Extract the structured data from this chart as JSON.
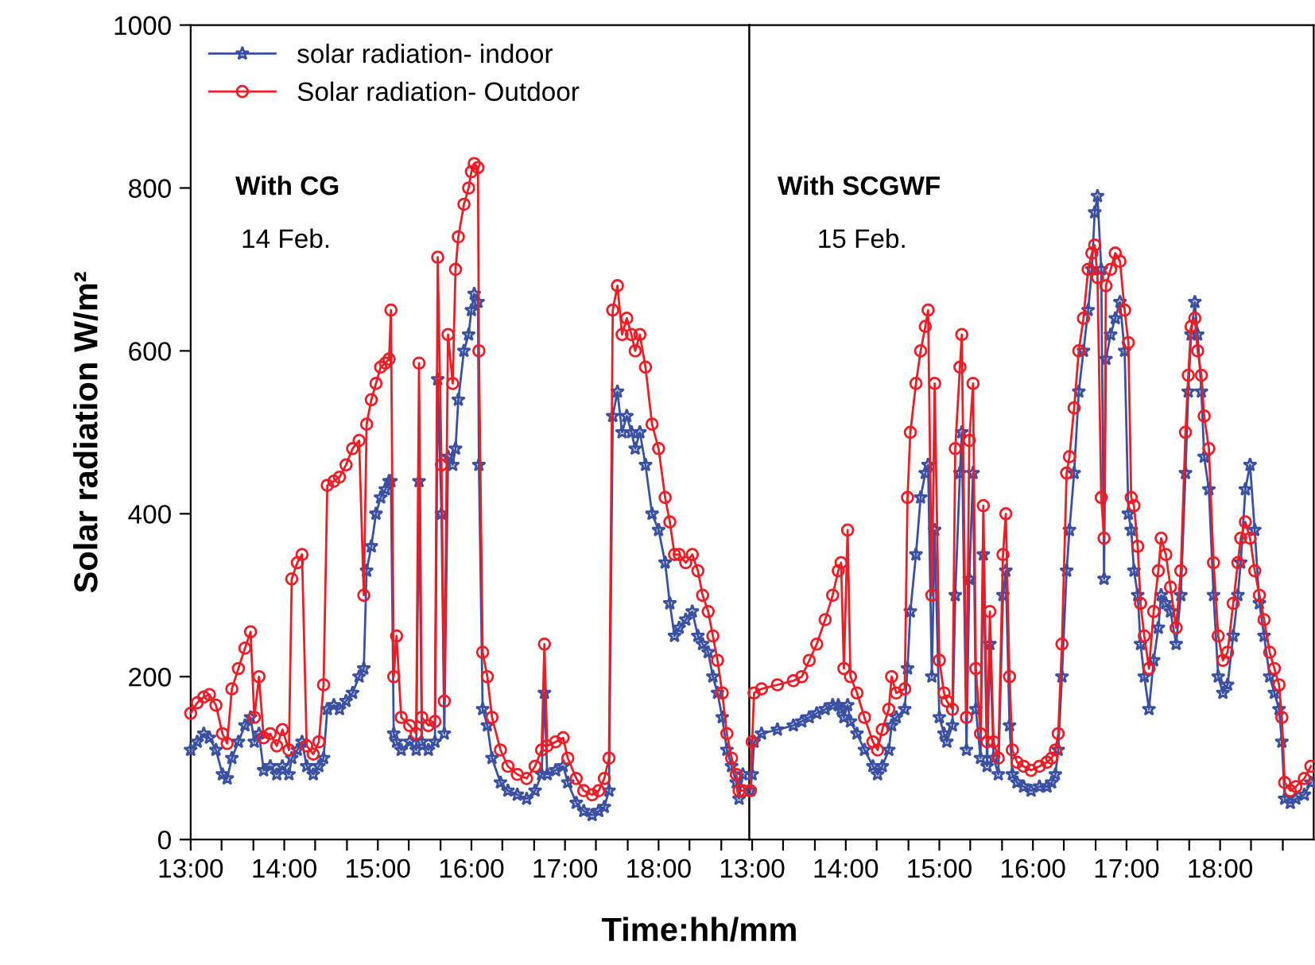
{
  "chart_data": [
    {
      "type": "line",
      "xlabel": "Time:hh/mm",
      "ylabel": "Solar radiation W/m²",
      "xlim": [
        13,
        18.97
      ],
      "ylim": [
        0,
        1000
      ],
      "yticks": [
        0,
        200,
        400,
        600,
        800,
        1000
      ],
      "xticks": [
        {
          "value": 13,
          "label": "13:00"
        },
        {
          "value": 13.33,
          "label": null
        },
        {
          "value": 13.67,
          "label": null
        },
        {
          "value": 14,
          "label": "14:00"
        },
        {
          "value": 14.33,
          "label": null
        },
        {
          "value": 14.67,
          "label": null
        },
        {
          "value": 15,
          "label": "15:00"
        },
        {
          "value": 15.33,
          "label": null
        },
        {
          "value": 15.67,
          "label": null
        },
        {
          "value": 16,
          "label": "16:00"
        },
        {
          "value": 16.33,
          "label": null
        },
        {
          "value": 16.67,
          "label": null
        },
        {
          "value": 17,
          "label": "17:00"
        },
        {
          "value": 17.33,
          "label": null
        },
        {
          "value": 17.67,
          "label": null
        },
        {
          "value": 18,
          "label": "18:00"
        },
        {
          "value": 18.33,
          "label": null
        },
        {
          "value": 18.67,
          "label": null
        }
      ],
      "x": [
        13.0,
        13.07,
        13.14,
        13.2,
        13.27,
        13.34,
        13.39,
        13.44,
        13.51,
        13.58,
        13.64,
        13.68,
        13.73,
        13.78,
        13.85,
        13.92,
        13.98,
        14.05,
        14.08,
        14.14,
        14.19,
        14.24,
        14.31,
        14.37,
        14.42,
        14.46,
        14.53,
        14.59,
        14.66,
        14.73,
        14.8,
        14.85,
        14.88,
        14.93,
        14.98,
        15.03,
        15.08,
        15.12,
        15.14,
        15.17,
        15.2,
        15.25,
        15.34,
        15.41,
        15.44,
        15.47,
        15.54,
        15.61,
        15.64,
        15.68,
        15.71,
        15.75,
        15.8,
        15.83,
        15.86,
        15.92,
        15.97,
        16.0,
        16.03,
        16.07,
        16.08,
        16.12,
        16.17,
        16.22,
        16.31,
        16.39,
        16.49,
        16.59,
        16.68,
        16.75,
        16.78,
        16.81,
        16.9,
        16.98,
        17.03,
        17.12,
        17.2,
        17.29,
        17.36,
        17.42,
        17.47,
        17.51,
        17.56,
        17.61,
        17.66,
        17.71,
        17.75,
        17.8,
        17.86,
        17.93,
        18.0,
        18.07,
        18.12,
        18.17,
        18.22,
        18.29,
        18.36,
        18.42,
        18.47,
        18.53,
        18.58,
        18.63,
        18.68,
        18.73,
        18.78,
        18.83,
        18.86,
        18.9
      ],
      "series": [
        {
          "name": "solar radiation- indoor",
          "color": "#3a50a2",
          "marker": "star",
          "values": [
            110,
            120,
            130,
            125,
            110,
            80,
            75,
            100,
            120,
            140,
            150,
            120,
            130,
            85,
            90,
            80,
            90,
            80,
            100,
            110,
            120,
            90,
            80,
            90,
            100,
            160,
            165,
            160,
            170,
            180,
            200,
            210,
            330,
            360,
            400,
            420,
            430,
            440,
            440,
            130,
            120,
            110,
            120,
            110,
            440,
            120,
            110,
            120,
            565,
            400,
            130,
            470,
            460,
            480,
            540,
            600,
            620,
            650,
            670,
            660,
            460,
            160,
            140,
            100,
            70,
            60,
            55,
            50,
            60,
            80,
            180,
            80,
            85,
            90,
            70,
            45,
            35,
            30,
            35,
            40,
            60,
            520,
            550,
            500,
            520,
            500,
            480,
            500,
            460,
            400,
            380,
            340,
            290,
            250,
            260,
            270,
            280,
            250,
            240,
            230,
            200,
            180,
            150,
            110,
            90,
            70,
            50,
            80
          ]
        },
        {
          "name": "Solar radiation- Outdoor",
          "color": "#ee1c24",
          "marker": "circle",
          "values": [
            155,
            168,
            175,
            178,
            165,
            130,
            118,
            185,
            210,
            235,
            255,
            150,
            200,
            125,
            130,
            115,
            135,
            110,
            320,
            340,
            350,
            115,
            105,
            120,
            190,
            435,
            440,
            445,
            460,
            480,
            490,
            300,
            510,
            540,
            560,
            580,
            585,
            590,
            650,
            200,
            250,
            150,
            140,
            130,
            585,
            150,
            140,
            145,
            715,
            460,
            170,
            620,
            560,
            700,
            740,
            780,
            800,
            820,
            830,
            825,
            600,
            230,
            200,
            150,
            110,
            90,
            80,
            75,
            90,
            110,
            240,
            115,
            120,
            125,
            100,
            75,
            60,
            55,
            60,
            75,
            100,
            650,
            680,
            620,
            640,
            620,
            600,
            620,
            580,
            510,
            480,
            420,
            390,
            350,
            350,
            340,
            350,
            330,
            300,
            280,
            250,
            220,
            180,
            130,
            100,
            80,
            60,
            60
          ]
        }
      ],
      "annotations": [
        "With CG",
        "14 Feb."
      ],
      "legend": "top left",
      "grid": false,
      "line_style": "solid"
    },
    {
      "type": "line",
      "tick_labels": "x",
      "xlim": [
        12.97,
        19
      ],
      "ylim": [
        0,
        1000
      ],
      "xticks": [
        {
          "value": 13,
          "label": "13:00"
        },
        {
          "value": 13.33,
          "label": null
        },
        {
          "value": 13.67,
          "label": null
        },
        {
          "value": 14,
          "label": "14:00"
        },
        {
          "value": 14.33,
          "label": null
        },
        {
          "value": 14.67,
          "label": null
        },
        {
          "value": 15,
          "label": "15:00"
        },
        {
          "value": 15.33,
          "label": null
        },
        {
          "value": 15.67,
          "label": null
        },
        {
          "value": 16,
          "label": "16:00"
        },
        {
          "value": 16.33,
          "label": null
        },
        {
          "value": 16.67,
          "label": null
        },
        {
          "value": 17,
          "label": "17:00"
        },
        {
          "value": 17.33,
          "label": null
        },
        {
          "value": 17.67,
          "label": null
        },
        {
          "value": 18,
          "label": "18:00"
        },
        {
          "value": 18.33,
          "label": null
        },
        {
          "value": 18.67,
          "label": null
        }
      ],
      "x": [
        12.98,
        13.0,
        13.02,
        13.1,
        13.27,
        13.44,
        13.53,
        13.61,
        13.69,
        13.78,
        13.86,
        13.92,
        13.95,
        13.98,
        14.02,
        14.05,
        14.12,
        14.2,
        14.29,
        14.34,
        14.39,
        14.46,
        14.49,
        14.54,
        14.63,
        14.66,
        14.69,
        14.75,
        14.8,
        14.85,
        14.88,
        14.92,
        14.95,
        15.0,
        15.05,
        15.08,
        15.14,
        15.17,
        15.22,
        15.24,
        15.29,
        15.32,
        15.36,
        15.39,
        15.44,
        15.47,
        15.51,
        15.54,
        15.58,
        15.63,
        15.68,
        15.71,
        15.75,
        15.78,
        15.83,
        15.9,
        15.98,
        16.07,
        16.15,
        16.2,
        16.24,
        16.27,
        16.31,
        16.36,
        16.39,
        16.44,
        16.49,
        16.54,
        16.59,
        16.63,
        16.66,
        16.69,
        16.73,
        16.76,
        16.78,
        16.83,
        16.88,
        16.93,
        16.98,
        17.02,
        17.05,
        17.08,
        17.12,
        17.15,
        17.19,
        17.24,
        17.29,
        17.34,
        17.37,
        17.42,
        17.47,
        17.53,
        17.58,
        17.63,
        17.66,
        17.69,
        17.73,
        17.76,
        17.8,
        17.83,
        17.88,
        17.93,
        17.98,
        18.03,
        18.08,
        18.14,
        18.19,
        18.22,
        18.27,
        18.32,
        18.37,
        18.42,
        18.47,
        18.53,
        18.58,
        18.63,
        18.66,
        18.69,
        18.75,
        18.81,
        18.9,
        18.97
      ],
      "series": [
        {
          "color": "#3a50a2",
          "marker": "star",
          "values": [
            60,
            80,
            120,
            130,
            135,
            140,
            145,
            150,
            155,
            160,
            165,
            165,
            160,
            150,
            165,
            145,
            130,
            110,
            90,
            80,
            90,
            110,
            140,
            150,
            160,
            210,
            280,
            350,
            420,
            450,
            460,
            200,
            380,
            150,
            130,
            120,
            140,
            300,
            450,
            500,
            110,
            320,
            450,
            160,
            100,
            350,
            90,
            240,
            100,
            80,
            300,
            330,
            140,
            80,
            70,
            65,
            60,
            65,
            65,
            70,
            80,
            110,
            200,
            330,
            380,
            450,
            550,
            600,
            650,
            700,
            770,
            790,
            700,
            320,
            590,
            620,
            640,
            660,
            600,
            400,
            380,
            330,
            300,
            240,
            200,
            160,
            220,
            260,
            300,
            290,
            280,
            240,
            300,
            450,
            550,
            620,
            660,
            620,
            550,
            470,
            430,
            300,
            200,
            180,
            190,
            250,
            300,
            340,
            430,
            460,
            380,
            290,
            250,
            200,
            180,
            160,
            120,
            50,
            45,
            50,
            55,
            70
          ]
        },
        {
          "color": "#ee1c24",
          "marker": "circle",
          "values": [
            60,
            120,
            180,
            185,
            190,
            195,
            200,
            220,
            240,
            270,
            300,
            330,
            340,
            210,
            380,
            200,
            180,
            150,
            120,
            110,
            135,
            160,
            200,
            180,
            185,
            420,
            500,
            560,
            600,
            630,
            650,
            300,
            560,
            220,
            180,
            170,
            160,
            480,
            580,
            620,
            150,
            490,
            560,
            210,
            130,
            410,
            120,
            280,
            120,
            100,
            350,
            400,
            200,
            110,
            95,
            90,
            85,
            90,
            95,
            100,
            110,
            130,
            240,
            450,
            470,
            530,
            600,
            640,
            700,
            720,
            730,
            690,
            420,
            370,
            680,
            700,
            720,
            710,
            650,
            610,
            420,
            410,
            360,
            290,
            250,
            210,
            280,
            330,
            370,
            350,
            310,
            260,
            330,
            500,
            570,
            630,
            640,
            600,
            570,
            520,
            480,
            340,
            250,
            220,
            230,
            290,
            340,
            370,
            390,
            370,
            330,
            300,
            270,
            230,
            210,
            190,
            150,
            70,
            60,
            65,
            75,
            90
          ]
        }
      ],
      "annotations": [
        "With SCGWF",
        "15 Feb."
      ],
      "grid": false,
      "line_style": "solid"
    }
  ]
}
